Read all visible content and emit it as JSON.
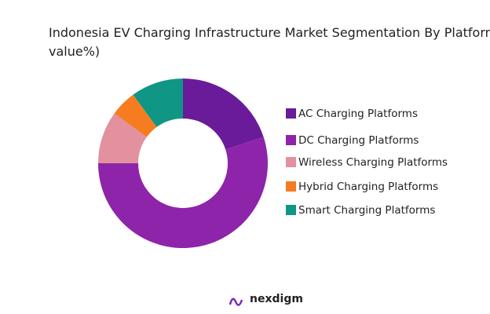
{
  "chart_data": {
    "type": "donut",
    "title": "Indonesia EV Charging Infrastructure Market Segmentation By Platform Type (in value%)",
    "categories": [
      "AC Charging Platforms",
      "DC Charging Platforms",
      "Wireless Charging Platforms",
      "Hybrid Charging Platforms",
      "Smart Charging Platforms"
    ],
    "values": [
      20,
      55,
      10,
      5,
      10
    ],
    "colors": [
      "#6a1b9a",
      "#8e24aa",
      "#e3909f",
      "#f57c1f",
      "#0f9685"
    ],
    "legend": "right"
  },
  "logo": "nexdigm"
}
